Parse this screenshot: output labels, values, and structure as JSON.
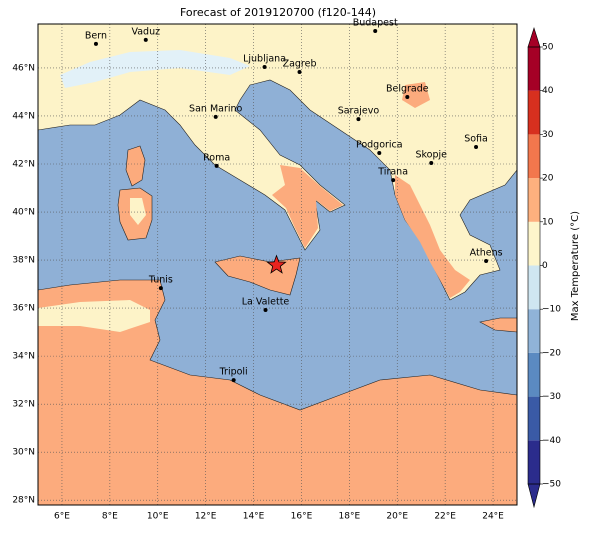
{
  "title": "Forecast of 2019120700 (f120-144)",
  "map": {
    "xlim": [
      5,
      25
    ],
    "ylim": [
      27.8,
      47.83
    ],
    "xticks": [
      {
        "value": 6,
        "label": "6°E"
      },
      {
        "value": 8,
        "label": "8°E"
      },
      {
        "value": 10,
        "label": "10°E"
      },
      {
        "value": 12,
        "label": "12°E"
      },
      {
        "value": 14,
        "label": "14°E"
      },
      {
        "value": 16,
        "label": "16°E"
      },
      {
        "value": 18,
        "label": "18°E"
      },
      {
        "value": 20,
        "label": "20°E"
      },
      {
        "value": 22,
        "label": "22°E"
      },
      {
        "value": 24,
        "label": "24°E"
      }
    ],
    "yticks": [
      {
        "value": 28,
        "label": "28°N"
      },
      {
        "value": 30,
        "label": "30°N"
      },
      {
        "value": 32,
        "label": "32°N"
      },
      {
        "value": 34,
        "label": "34°N"
      },
      {
        "value": 36,
        "label": "36°N"
      },
      {
        "value": 38,
        "label": "38°N"
      },
      {
        "value": 40,
        "label": "40°N"
      },
      {
        "value": 42,
        "label": "42°N"
      },
      {
        "value": 44,
        "label": "44°N"
      },
      {
        "value": 46,
        "label": "46°N"
      }
    ],
    "grid": true,
    "cities": [
      {
        "name": "Bern",
        "lon": 7.42,
        "lat": 47.0
      },
      {
        "name": "Vaduz",
        "lon": 9.5,
        "lat": 47.17
      },
      {
        "name": "Budapest",
        "lon": 19.08,
        "lat": 47.54
      },
      {
        "name": "Ljubljana",
        "lon": 14.46,
        "lat": 46.04
      },
      {
        "name": "Zagreb",
        "lon": 15.92,
        "lat": 45.83
      },
      {
        "name": "Belgrade",
        "lon": 20.42,
        "lat": 44.79
      },
      {
        "name": "San Marino",
        "lon": 12.42,
        "lat": 43.96
      },
      {
        "name": "Sarajevo",
        "lon": 18.38,
        "lat": 43.87
      },
      {
        "name": "Sofia",
        "lon": 23.29,
        "lat": 42.71
      },
      {
        "name": "Podgorica",
        "lon": 19.25,
        "lat": 42.46
      },
      {
        "name": "Skopje",
        "lon": 21.42,
        "lat": 42.04
      },
      {
        "name": "Roma",
        "lon": 12.46,
        "lat": 41.92
      },
      {
        "name": "Tirana",
        "lon": 19.83,
        "lat": 41.33
      },
      {
        "name": "Athens",
        "lon": 23.71,
        "lat": 37.96
      },
      {
        "name": "Tunis",
        "lon": 10.13,
        "lat": 36.83
      },
      {
        "name": "La Valette",
        "lon": 14.5,
        "lat": 35.92
      },
      {
        "name": "Tripoli",
        "lon": 13.17,
        "lat": 33.0
      }
    ],
    "star": {
      "lon": 14.96,
      "lat": 37.79,
      "color": "#e8231f"
    }
  },
  "colorbar": {
    "label": "Max Temperature (°C)",
    "lim": [
      -50,
      50
    ],
    "ticks": [
      {
        "value": -50,
        "label": "−50"
      },
      {
        "value": -40,
        "label": "−40"
      },
      {
        "value": -30,
        "label": "−30"
      },
      {
        "value": -20,
        "label": "−20"
      },
      {
        "value": -10,
        "label": "−10"
      },
      0,
      10,
      20,
      30,
      40,
      50
    ],
    "colors": [
      "#2b2c8c",
      "#3a5aa6",
      "#5b8ac1",
      "#90b3d8",
      "#cfe6f1",
      "#fdf5cb",
      "#fdb07e",
      "#f2774d",
      "#d7301f",
      "#a50026"
    ]
  }
}
